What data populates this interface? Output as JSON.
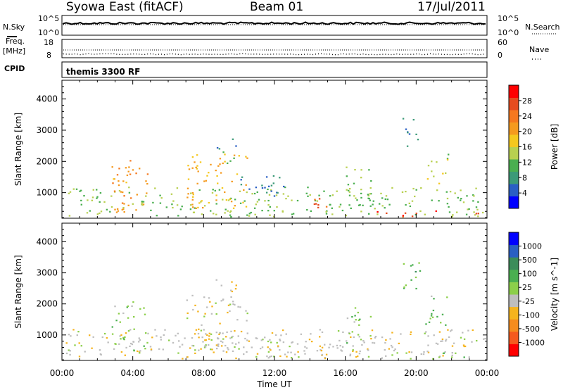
{
  "header": {
    "station": "Syowa East (fitACF)",
    "beam": "Beam 01",
    "date": "17/Jul/2011"
  },
  "param_panels": {
    "nsky_label": "N.Sky",
    "nsky_ticks": [
      "10^5",
      "10^0"
    ],
    "nsearch_label": "N.Search",
    "freq_label_line1": "Freq.",
    "freq_label_line2": "[MHz]",
    "freq_ticks": [
      "18",
      "8"
    ],
    "nave_label": "Nave",
    "nave_ticks": [
      "60",
      "0"
    ],
    "cpid_label": "CPID",
    "cpid_value": "themis 3300 RF"
  },
  "chart_data": [
    {
      "type": "heatmap",
      "name": "power",
      "ylabel": "Slant Range [km]",
      "xlabel": "Time UT",
      "x_ticks": [
        "00:00",
        "04:00",
        "08:00",
        "12:00",
        "16:00",
        "20:00",
        "00:00"
      ],
      "y_ticks": [
        1000,
        2000,
        3000,
        4000
      ],
      "ylim": [
        180,
        4600
      ],
      "xlim_hours": [
        0,
        24
      ],
      "colorbar": {
        "label": "Power [dB]",
        "ticks": [
          "4",
          "8",
          "12",
          "16",
          "20",
          "24",
          "28"
        ],
        "range": [
          0,
          30
        ],
        "colors": [
          "#0000ff",
          "#2a5fc4",
          "#3c9a78",
          "#4aaf50",
          "#b8d050",
          "#f5c81e",
          "#f59a1e",
          "#f5781e",
          "#e64b1e",
          "#ff0000"
        ]
      },
      "regions": [
        {
          "t0": 0.2,
          "t1": 24,
          "r0": 200,
          "r1": 1200,
          "value": 12
        },
        {
          "t0": 2.8,
          "t1": 4.8,
          "r0": 300,
          "r1": 2100,
          "value": 20
        },
        {
          "t0": 7.0,
          "t1": 10.5,
          "r0": 500,
          "r1": 2300,
          "value": 18
        },
        {
          "t0": 8.6,
          "t1": 9.8,
          "r0": 1900,
          "r1": 2800,
          "value": 8
        },
        {
          "t0": 10.0,
          "t1": 12.5,
          "r0": 900,
          "r1": 1600,
          "value": 6
        },
        {
          "t0": 13.5,
          "t1": 15.5,
          "r0": 500,
          "r1": 900,
          "value": 24
        },
        {
          "t0": 16.0,
          "t1": 17.5,
          "r0": 600,
          "r1": 1900,
          "value": 12
        },
        {
          "t0": 19.2,
          "t1": 20.2,
          "r0": 2500,
          "r1": 3400,
          "value": 6
        },
        {
          "t0": 20.5,
          "t1": 21.8,
          "r0": 1300,
          "r1": 2300,
          "value": 14
        },
        {
          "t0": 17.5,
          "t1": 23.5,
          "r0": 200,
          "r1": 450,
          "value": 26
        }
      ]
    },
    {
      "type": "heatmap",
      "name": "velocity",
      "ylabel": "Slant Range [km]",
      "xlabel": "Time UT",
      "x_ticks": [
        "00:00",
        "04:00",
        "08:00",
        "12:00",
        "16:00",
        "20:00",
        "00:00"
      ],
      "y_ticks": [
        1000,
        2000,
        3000,
        4000
      ],
      "ylim": [
        180,
        4600
      ],
      "xlim_hours": [
        0,
        24
      ],
      "colorbar": {
        "label": "Velocity [m s^-1]",
        "ticks": [
          "1000",
          "500",
          "100",
          "25",
          "-25",
          "-100",
          "-500",
          "-1000"
        ],
        "range": [
          -1200,
          1200
        ],
        "colors": [
          "#ff0000",
          "#f55a1e",
          "#f58c1e",
          "#f5b41e",
          "#bebebe",
          "#8ccf4a",
          "#4aaf50",
          "#3c8c5a",
          "#2a5fc4",
          "#0000ff"
        ]
      },
      "regions": [
        {
          "t0": 0.2,
          "t1": 24,
          "r0": 200,
          "r1": 1200,
          "value": -150
        },
        {
          "t0": 2.8,
          "t1": 4.8,
          "r0": 300,
          "r1": 2100,
          "value": 120
        },
        {
          "t0": 7.0,
          "t1": 10.5,
          "r0": 500,
          "r1": 2300,
          "value": -150
        },
        {
          "t0": 8.6,
          "t1": 9.8,
          "r0": 1900,
          "r1": 2800,
          "value": -300
        },
        {
          "t0": 11.0,
          "t1": 13.0,
          "r0": 200,
          "r1": 900,
          "value": 0
        },
        {
          "t0": 13.5,
          "t1": 15.5,
          "r0": 500,
          "r1": 900,
          "value": -120
        },
        {
          "t0": 16.0,
          "t1": 17.5,
          "r0": 600,
          "r1": 1900,
          "value": 150
        },
        {
          "t0": 19.2,
          "t1": 20.2,
          "r0": 2500,
          "r1": 3400,
          "value": 300
        },
        {
          "t0": 20.5,
          "t1": 21.8,
          "r0": 1300,
          "r1": 2300,
          "value": 200
        },
        {
          "t0": 17.5,
          "t1": 23.5,
          "r0": 200,
          "r1": 450,
          "value": 80
        }
      ]
    }
  ]
}
